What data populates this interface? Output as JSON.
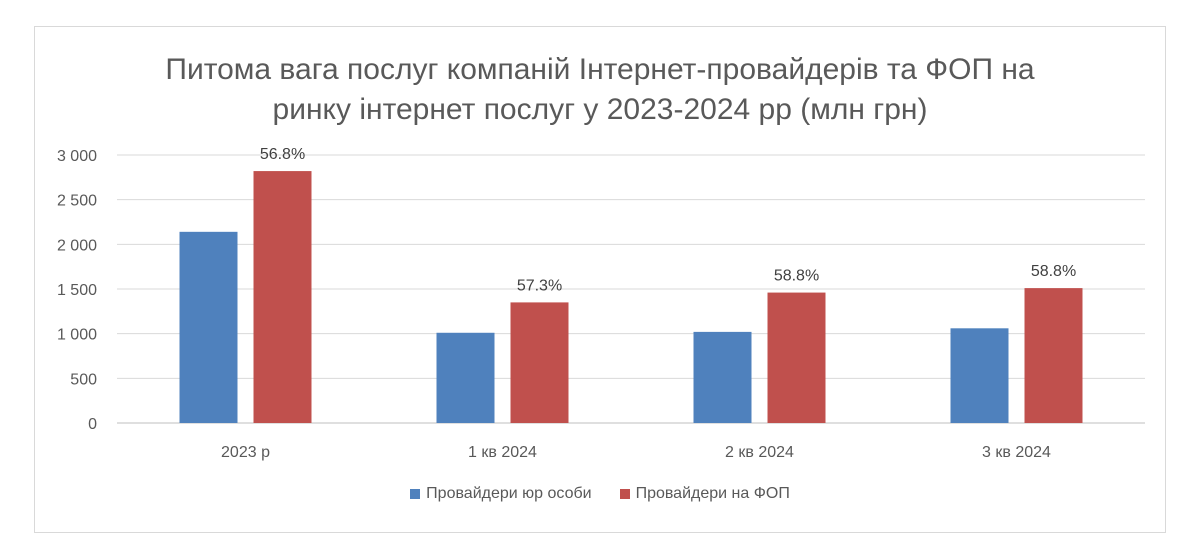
{
  "chart_data": {
    "type": "bar",
    "title_lines": [
      "Питома вага послуг компаній Інтернет-провайдерів та ФОП на",
      "ринку інтернет послуг у 2023-2024 рр (млн грн)"
    ],
    "categories": [
      "2023 р",
      "1 кв 2024",
      "2 кв 2024",
      "3 кв 2024"
    ],
    "series": [
      {
        "name": "Провайдери юр особи",
        "color": "#4f81bd",
        "values": [
          2140,
          1010,
          1020,
          1060
        ]
      },
      {
        "name": "Провайдери на ФОП",
        "color": "#c0504d",
        "values": [
          2820,
          1350,
          1460,
          1510
        ],
        "data_labels": [
          "56.8%",
          "57.3%",
          "58.8%",
          "58.8%"
        ]
      }
    ],
    "y_ticks": [
      "0",
      "500",
      "1 000",
      "1 500",
      "2 000",
      "2 500",
      "3 000"
    ],
    "ylim": [
      0,
      3000
    ],
    "grid": true,
    "legend_position": "bottom"
  }
}
